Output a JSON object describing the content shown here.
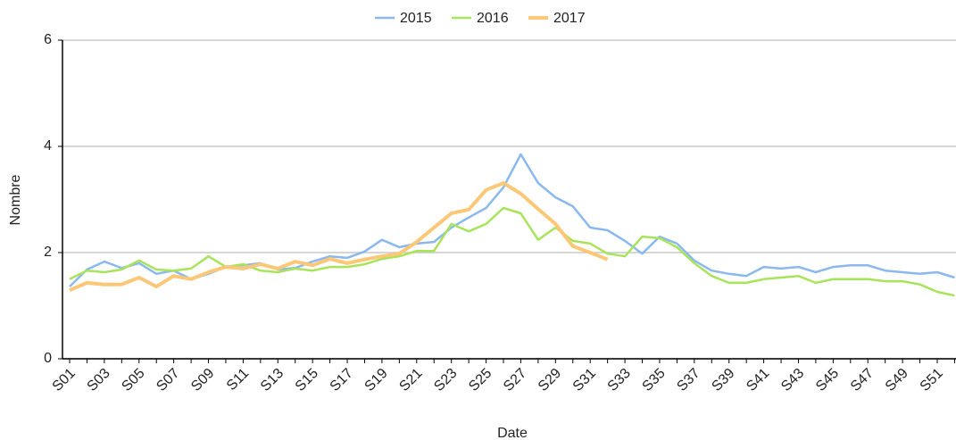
{
  "chart_data": {
    "type": "line",
    "x_label": "Date",
    "y_label": "Nombre",
    "categories": [
      "S01",
      null,
      "S03",
      null,
      "S05",
      null,
      "S07",
      null,
      "S09",
      null,
      "S11",
      null,
      "S13",
      null,
      "S15",
      null,
      "S17",
      null,
      "S19",
      null,
      "S21",
      null,
      "S23",
      null,
      "S25",
      null,
      "S27",
      null,
      "S29",
      null,
      "S31",
      null,
      "S33",
      null,
      "S35",
      null,
      "S37",
      null,
      "S39",
      null,
      "S41",
      null,
      "S43",
      null,
      "S45",
      null,
      "S47",
      null,
      "S49",
      null,
      "S51",
      null
    ],
    "series": [
      {
        "name": "2015",
        "color": "#8ab8ef",
        "values": [
          1.36,
          1.68,
          1.83,
          1.71,
          1.8,
          1.6,
          1.66,
          1.5,
          1.6,
          1.73,
          1.76,
          1.8,
          1.68,
          1.71,
          1.83,
          1.93,
          1.9,
          2.02,
          2.24,
          2.1,
          2.17,
          2.2,
          2.47,
          2.66,
          2.84,
          3.23,
          3.85,
          3.31,
          3.04,
          2.87,
          2.47,
          2.42,
          2.22,
          1.98,
          2.3,
          2.17,
          1.85,
          1.66,
          1.6,
          1.56,
          1.73,
          1.7,
          1.73,
          1.63,
          1.73,
          1.76,
          1.76,
          1.66,
          1.63,
          1.6,
          1.63,
          1.53
        ]
      },
      {
        "name": "2016",
        "color": "#a8e45a",
        "values": [
          1.5,
          1.66,
          1.63,
          1.68,
          1.85,
          1.68,
          1.66,
          1.7,
          1.93,
          1.73,
          1.78,
          1.66,
          1.63,
          1.7,
          1.66,
          1.73,
          1.73,
          1.78,
          1.88,
          1.93,
          2.03,
          2.03,
          2.54,
          2.4,
          2.54,
          2.84,
          2.74,
          2.24,
          2.47,
          2.22,
          2.17,
          1.98,
          1.93,
          2.3,
          2.27,
          2.1,
          1.8,
          1.56,
          1.43,
          1.43,
          1.5,
          1.53,
          1.56,
          1.43,
          1.5,
          1.5,
          1.5,
          1.46,
          1.46,
          1.4,
          1.26,
          1.19
        ]
      },
      {
        "name": "2017",
        "color": "#fcc776",
        "values": [
          1.29,
          1.43,
          1.4,
          1.4,
          1.53,
          1.36,
          1.56,
          1.5,
          1.63,
          1.73,
          1.7,
          1.78,
          1.7,
          1.83,
          1.76,
          1.88,
          1.8,
          1.87,
          1.93,
          1.98,
          2.2,
          2.47,
          2.74,
          2.81,
          3.18,
          3.31,
          3.11,
          2.82,
          2.54,
          2.12,
          2.0,
          1.87,
          null,
          null,
          null,
          null,
          null,
          null,
          null,
          null,
          null,
          null,
          null,
          null,
          null,
          null,
          null,
          null,
          null,
          null,
          null,
          null
        ]
      }
    ],
    "ylim": [
      0,
      6
    ],
    "yticks": [
      0,
      2,
      4,
      6
    ],
    "grid": true
  }
}
